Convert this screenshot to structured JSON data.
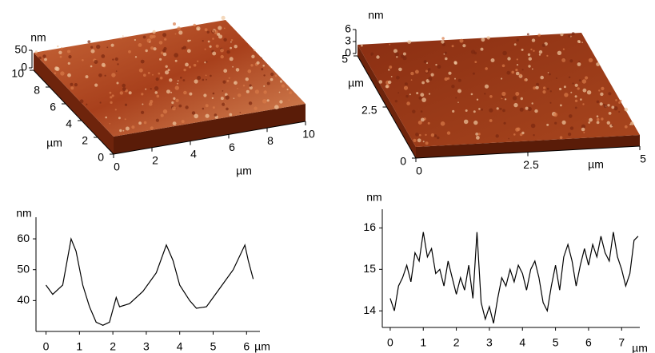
{
  "chart_data": [
    {
      "type": "surface",
      "x_label": "µm",
      "y_label": "µm",
      "z_label": "nm",
      "xlim": [
        0,
        10
      ],
      "ylim": [
        0,
        10
      ],
      "zlim": [
        0,
        50
      ],
      "xticks": [
        0,
        2,
        4,
        6,
        8,
        10
      ],
      "yticks": [
        0,
        2,
        4,
        6,
        8,
        10
      ],
      "zticks": [
        0,
        50
      ]
    },
    {
      "type": "surface",
      "x_label": "µm",
      "y_label": "µm",
      "z_label": "nm",
      "xlim": [
        0,
        5
      ],
      "ylim": [
        0,
        5
      ],
      "zlim": [
        0,
        6
      ],
      "xticks": [
        0,
        2.5,
        5
      ],
      "yticks": [
        0,
        2.5,
        5
      ],
      "zticks": [
        0,
        3,
        6
      ]
    },
    {
      "type": "line",
      "x_label": "µm",
      "y_label": "nm",
      "color": "#000000",
      "xlim": [
        -0.3,
        6.4
      ],
      "ylim": [
        30,
        67
      ],
      "xticks": [
        0,
        1,
        2,
        3,
        4,
        5,
        6
      ],
      "yticks": [
        40,
        50,
        60
      ],
      "x": [
        0,
        0.2,
        0.5,
        0.75,
        0.9,
        1.1,
        1.3,
        1.5,
        1.7,
        1.9,
        2.0,
        2.1,
        2.2,
        2.5,
        2.9,
        3.3,
        3.6,
        3.8,
        4.0,
        4.3,
        4.5,
        4.8,
        5.2,
        5.6,
        5.95,
        6.05,
        6.2
      ],
      "values": [
        45,
        42,
        45,
        60,
        56,
        45,
        38,
        33,
        32,
        33,
        37,
        41,
        38,
        39,
        43,
        49,
        58,
        53,
        45,
        40,
        37.5,
        38,
        44,
        50,
        58,
        53,
        47
      ]
    },
    {
      "type": "line",
      "x_label": "µm",
      "y_label": "nm",
      "color": "#000000",
      "xlim": [
        -0.24,
        7.55
      ],
      "ylim": [
        13.6,
        16.45
      ],
      "xticks": [
        0,
        1,
        2,
        3,
        4,
        5,
        6,
        7
      ],
      "yticks": [
        14,
        15,
        16
      ],
      "x": [
        0,
        0.125,
        0.25,
        0.375,
        0.5,
        0.625,
        0.75,
        0.875,
        1.0,
        1.125,
        1.25,
        1.375,
        1.5,
        1.625,
        1.75,
        1.875,
        2.0,
        2.125,
        2.25,
        2.375,
        2.5,
        2.625,
        2.75,
        2.875,
        3.0,
        3.125,
        3.25,
        3.375,
        3.5,
        3.625,
        3.75,
        3.875,
        4.0,
        4.125,
        4.25,
        4.375,
        4.5,
        4.625,
        4.75,
        4.875,
        5.0,
        5.125,
        5.25,
        5.375,
        5.5,
        5.625,
        5.75,
        5.875,
        6.0,
        6.125,
        6.25,
        6.375,
        6.5,
        6.625,
        6.75,
        6.875,
        7.0,
        7.125,
        7.25,
        7.375,
        7.5
      ],
      "values": [
        14.3,
        14.0,
        14.6,
        14.8,
        15.1,
        14.7,
        15.4,
        15.2,
        15.9,
        15.3,
        15.5,
        14.9,
        15.0,
        14.6,
        15.2,
        14.8,
        14.4,
        14.8,
        14.5,
        15.1,
        14.3,
        15.9,
        14.2,
        13.8,
        14.1,
        13.7,
        14.3,
        14.8,
        14.6,
        15.0,
        14.7,
        15.1,
        14.9,
        14.5,
        15.0,
        15.2,
        14.8,
        14.2,
        14.0,
        14.6,
        15.1,
        14.5,
        15.3,
        15.6,
        15.2,
        14.6,
        15.1,
        15.5,
        15.1,
        15.6,
        15.3,
        15.8,
        15.4,
        15.2,
        15.9,
        15.3,
        15.0,
        14.6,
        14.9,
        15.7,
        15.8
      ]
    }
  ]
}
